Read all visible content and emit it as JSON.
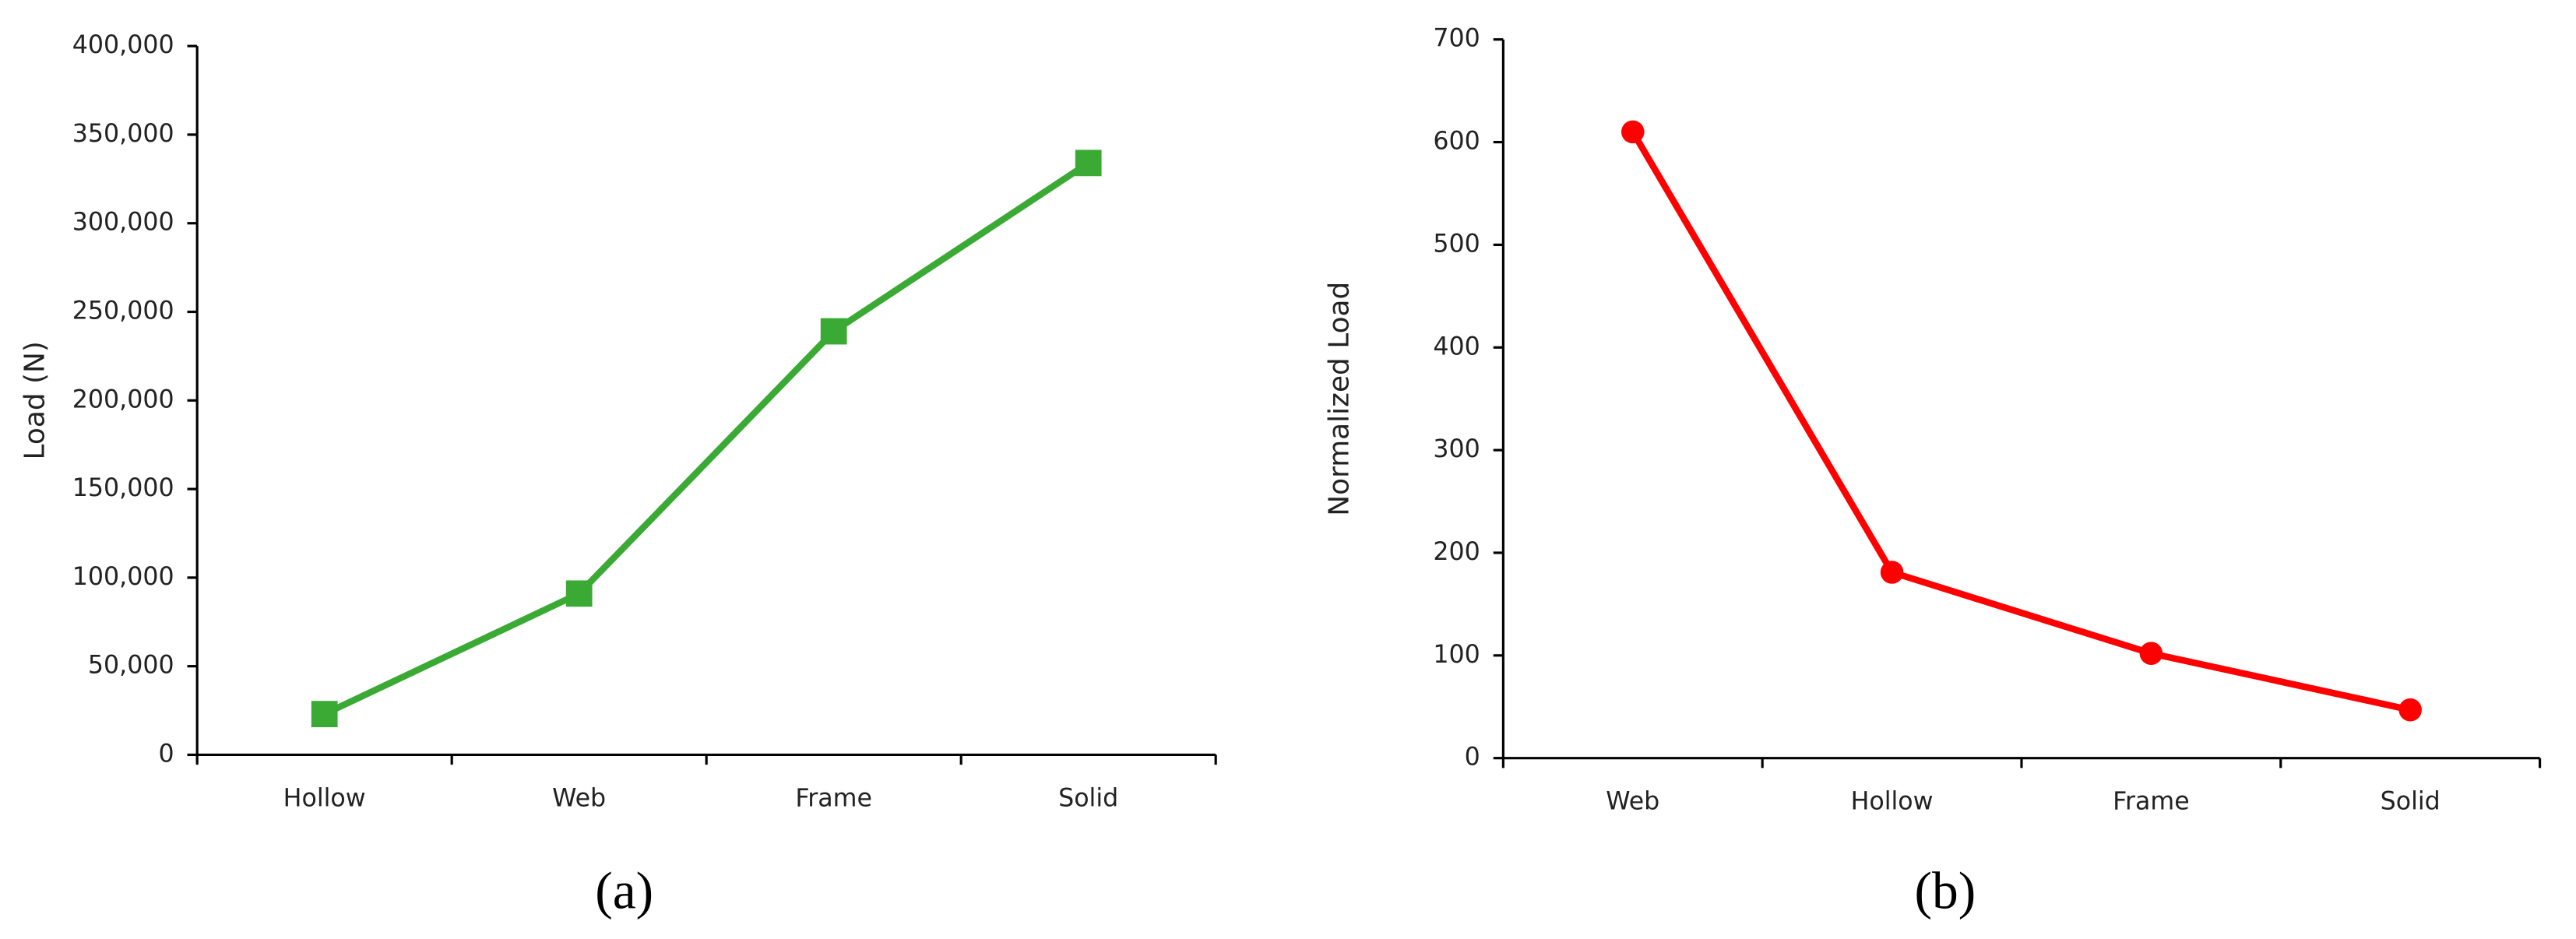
{
  "chart_data": [
    {
      "type": "line",
      "caption": "(a)",
      "y_label": "Load (N)",
      "categories": [
        "Hollow",
        "Web",
        "Frame",
        "Solid"
      ],
      "series": [
        {
          "color": "#3aaa35",
          "marker": "square",
          "values": [
            23000,
            91000,
            239000,
            334000
          ]
        }
      ],
      "ylim": [
        0,
        400000
      ],
      "yticks": [
        0,
        {
          "value": 50000,
          "label": "50,000"
        },
        {
          "value": 100000,
          "label": "100,000"
        },
        {
          "value": 150000,
          "label": "150,000"
        },
        {
          "value": 200000,
          "label": "200,000"
        },
        {
          "value": 250000,
          "label": "250,000"
        },
        {
          "value": 300000,
          "label": "300,000"
        },
        {
          "value": 350000,
          "label": "350,000"
        },
        {
          "value": 400000,
          "label": "400,000"
        }
      ]
    },
    {
      "type": "line",
      "caption": "(b)",
      "y_label": "Normalized Load",
      "categories": [
        "Web",
        "Hollow",
        "Frame",
        "Solid"
      ],
      "series": [
        {
          "color": "#ff0000",
          "marker": "circle",
          "values": [
            610,
            181,
            102,
            47
          ]
        }
      ],
      "ylim": [
        0,
        700
      ],
      "yticks": [
        0,
        100,
        200,
        300,
        400,
        500,
        600,
        700
      ]
    }
  ]
}
